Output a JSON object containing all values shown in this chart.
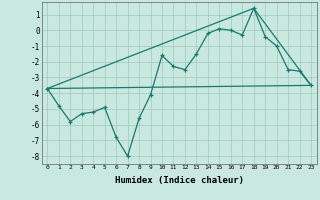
{
  "title": "",
  "xlabel": "Humidex (Indice chaleur)",
  "ylabel": "",
  "line_color": "#1a7a6e",
  "background_color": "#c8e8e0",
  "grid_color": "#a0c8c0",
  "xlim": [
    -0.5,
    23.5
  ],
  "ylim": [
    -8.5,
    1.8
  ],
  "yticks": [
    1,
    0,
    -1,
    -2,
    -3,
    -4,
    -5,
    -6,
    -7,
    -8
  ],
  "xticks": [
    0,
    1,
    2,
    3,
    4,
    5,
    6,
    7,
    8,
    9,
    10,
    11,
    12,
    13,
    14,
    15,
    16,
    17,
    18,
    19,
    20,
    21,
    22,
    23
  ],
  "line1_x": [
    0,
    1,
    2,
    3,
    4,
    5,
    6,
    7,
    8,
    9,
    10,
    11,
    12,
    13,
    14,
    15,
    16,
    17,
    18,
    19,
    20,
    21,
    22,
    23
  ],
  "line1_y": [
    -3.7,
    -4.8,
    -5.8,
    -5.3,
    -5.2,
    -4.9,
    -6.8,
    -8.0,
    -5.6,
    -4.1,
    -1.6,
    -2.3,
    -2.5,
    -1.5,
    -0.2,
    0.1,
    0.0,
    -0.3,
    1.4,
    -0.4,
    -1.0,
    -2.5,
    -2.6,
    -3.5
  ],
  "line2_x": [
    0,
    23
  ],
  "line2_y": [
    -3.7,
    -3.5
  ],
  "line3_x": [
    0,
    18,
    23
  ],
  "line3_y": [
    -3.7,
    1.4,
    -3.5
  ],
  "marker": "+"
}
